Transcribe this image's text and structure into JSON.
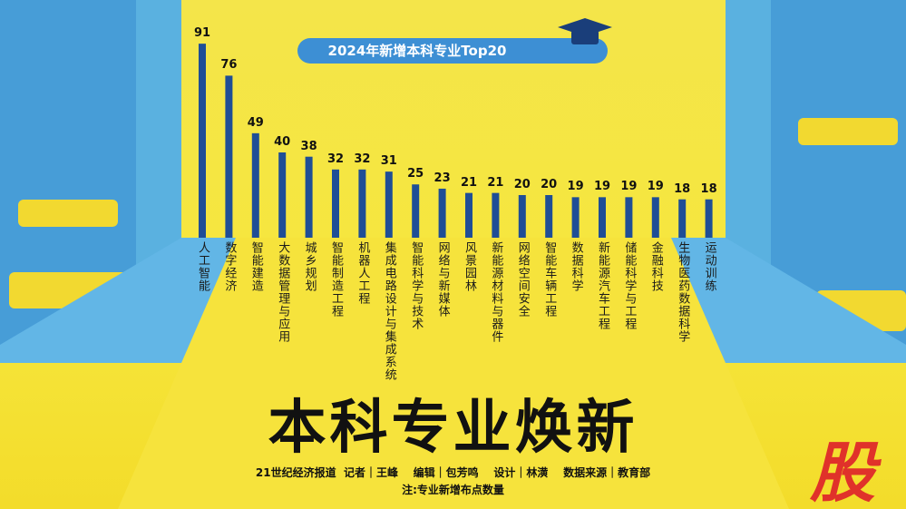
{
  "chart_data": {
    "type": "bar",
    "title": "2024年新增本科专业Top20",
    "categories": [
      "人工智能",
      "数字经济",
      "智能建造",
      "大数据管理与应用",
      "城乡规划",
      "智能制造工程",
      "机器人工程",
      "集成电路设计与集成系统",
      "智能科学与技术",
      "网络与新媒体",
      "风景园林",
      "新能源材料与器件",
      "网络空间安全",
      "智能车辆工程",
      "数据科学",
      "新能源汽车工程",
      "储能科学与工程",
      "金融科技",
      "生物医药数据科学",
      "运动训练"
    ],
    "values": [
      91,
      76,
      49,
      40,
      38,
      32,
      32,
      31,
      25,
      23,
      21,
      21,
      20,
      20,
      19,
      19,
      19,
      19,
      18,
      18
    ],
    "color": "#1f4e96",
    "headline": "本科专业焕新",
    "credits": "21世纪经济报道  记者｜王峰    编辑｜包芳鸣    设计｜林潢    数据来源｜教育部",
    "note": "注:专业新增布点数量",
    "badge": "股"
  }
}
